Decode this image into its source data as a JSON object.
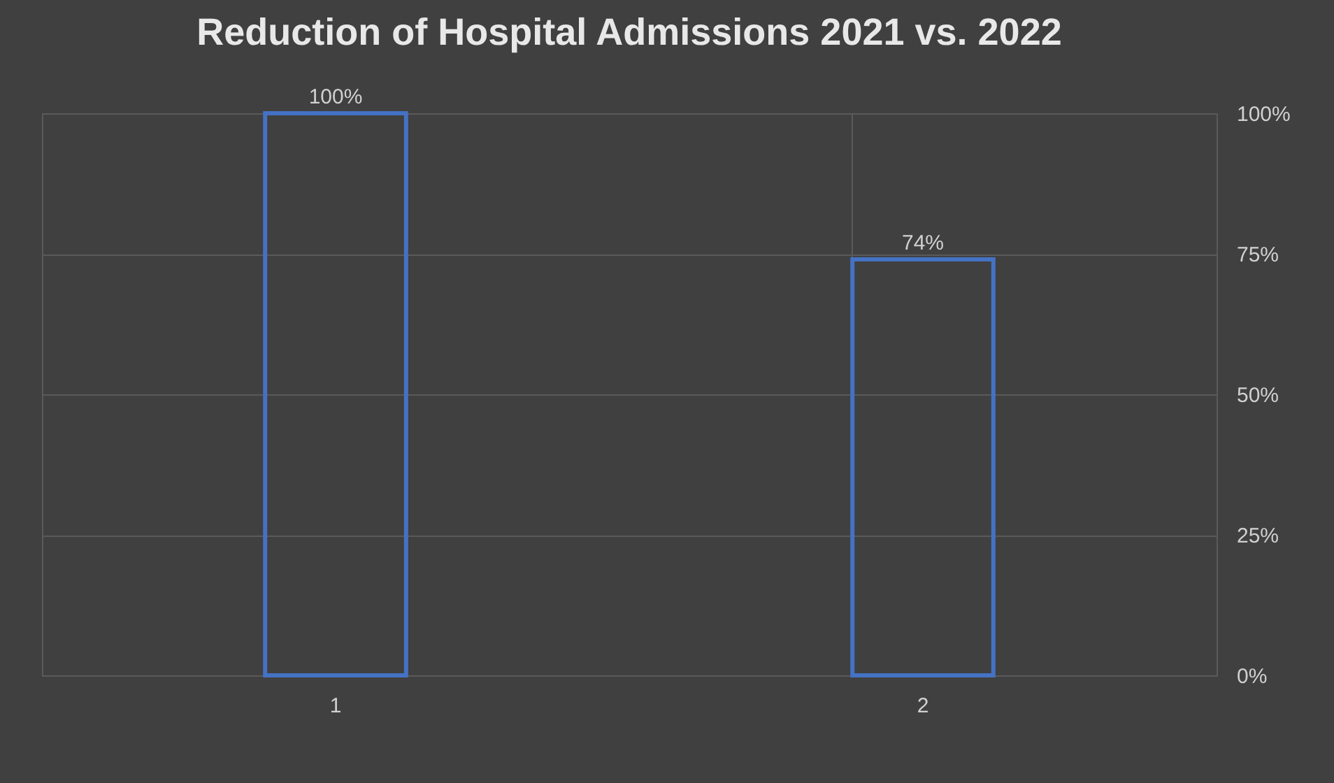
{
  "chart_data": {
    "type": "bar",
    "title": "Reduction of Hospital Admissions 2021 vs. 2022",
    "categories": [
      "1",
      "2"
    ],
    "values": [
      100,
      74
    ],
    "value_labels": [
      "100%",
      "74%"
    ],
    "color": "#4472c4",
    "ylim": [
      0,
      100
    ],
    "yticks": [
      {
        "value": 0,
        "label": "0%"
      },
      {
        "value": 25,
        "label": "25%"
      },
      {
        "value": 50,
        "label": "50%"
      },
      {
        "value": 75,
        "label": "75%"
      },
      {
        "value": 100,
        "label": "100%"
      }
    ],
    "grid": true
  }
}
